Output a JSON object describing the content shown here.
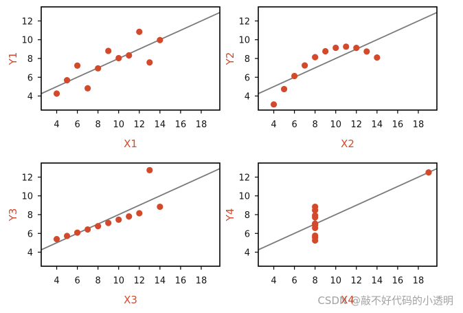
{
  "colors": {
    "points": "#d24a2b",
    "line": "#7a7a7a",
    "labels": "#d24a2b"
  },
  "watermark": "CSDN @敲不好代码的小透明",
  "chart_data": [
    {
      "type": "scatter",
      "xlabel": "X1",
      "ylabel": "Y1",
      "xlim": [
        2.5,
        19.8
      ],
      "ylim": [
        2.5,
        13.5
      ],
      "xticks": [
        4,
        6,
        8,
        10,
        12,
        14,
        16,
        18
      ],
      "yticks": [
        4,
        6,
        8,
        10,
        12
      ],
      "fit": {
        "intercept": 3,
        "slope": 0.5
      },
      "points": [
        [
          10,
          8.04
        ],
        [
          8,
          6.95
        ],
        [
          13,
          7.58
        ],
        [
          9,
          8.81
        ],
        [
          11,
          8.33
        ],
        [
          14,
          9.96
        ],
        [
          6,
          7.24
        ],
        [
          4,
          4.26
        ],
        [
          12,
          10.84
        ],
        [
          7,
          4.82
        ],
        [
          5,
          5.68
        ]
      ]
    },
    {
      "type": "scatter",
      "xlabel": "X2",
      "ylabel": "Y2",
      "xlim": [
        2.5,
        19.8
      ],
      "ylim": [
        2.5,
        13.5
      ],
      "xticks": [
        4,
        6,
        8,
        10,
        12,
        14,
        16,
        18
      ],
      "yticks": [
        4,
        6,
        8,
        10,
        12
      ],
      "fit": {
        "intercept": 3,
        "slope": 0.5
      },
      "points": [
        [
          10,
          9.14
        ],
        [
          8,
          8.14
        ],
        [
          13,
          8.74
        ],
        [
          9,
          8.77
        ],
        [
          11,
          9.26
        ],
        [
          14,
          8.1
        ],
        [
          6,
          6.13
        ],
        [
          4,
          3.1
        ],
        [
          12,
          9.13
        ],
        [
          7,
          7.26
        ],
        [
          5,
          4.74
        ]
      ]
    },
    {
      "type": "scatter",
      "xlabel": "X3",
      "ylabel": "Y3",
      "xlim": [
        2.5,
        19.8
      ],
      "ylim": [
        2.5,
        13.5
      ],
      "xticks": [
        4,
        6,
        8,
        10,
        12,
        14,
        16,
        18
      ],
      "yticks": [
        4,
        6,
        8,
        10,
        12
      ],
      "fit": {
        "intercept": 3,
        "slope": 0.5
      },
      "points": [
        [
          10,
          7.46
        ],
        [
          8,
          6.77
        ],
        [
          13,
          12.74
        ],
        [
          9,
          7.11
        ],
        [
          11,
          7.81
        ],
        [
          14,
          8.84
        ],
        [
          6,
          6.08
        ],
        [
          4,
          5.39
        ],
        [
          12,
          8.15
        ],
        [
          7,
          6.42
        ],
        [
          5,
          5.73
        ]
      ]
    },
    {
      "type": "scatter",
      "xlabel": "X4",
      "ylabel": "Y4",
      "xlim": [
        2.5,
        19.8
      ],
      "ylim": [
        2.5,
        13.5
      ],
      "xticks": [
        4,
        6,
        8,
        10,
        12,
        14,
        16,
        18
      ],
      "yticks": [
        4,
        6,
        8,
        10,
        12
      ],
      "fit": {
        "intercept": 3,
        "slope": 0.5
      },
      "points": [
        [
          8,
          6.58
        ],
        [
          8,
          5.76
        ],
        [
          8,
          7.71
        ],
        [
          8,
          8.84
        ],
        [
          8,
          8.47
        ],
        [
          8,
          7.04
        ],
        [
          8,
          5.25
        ],
        [
          19,
          12.5
        ],
        [
          8,
          5.56
        ],
        [
          8,
          7.91
        ],
        [
          8,
          6.89
        ]
      ]
    }
  ]
}
